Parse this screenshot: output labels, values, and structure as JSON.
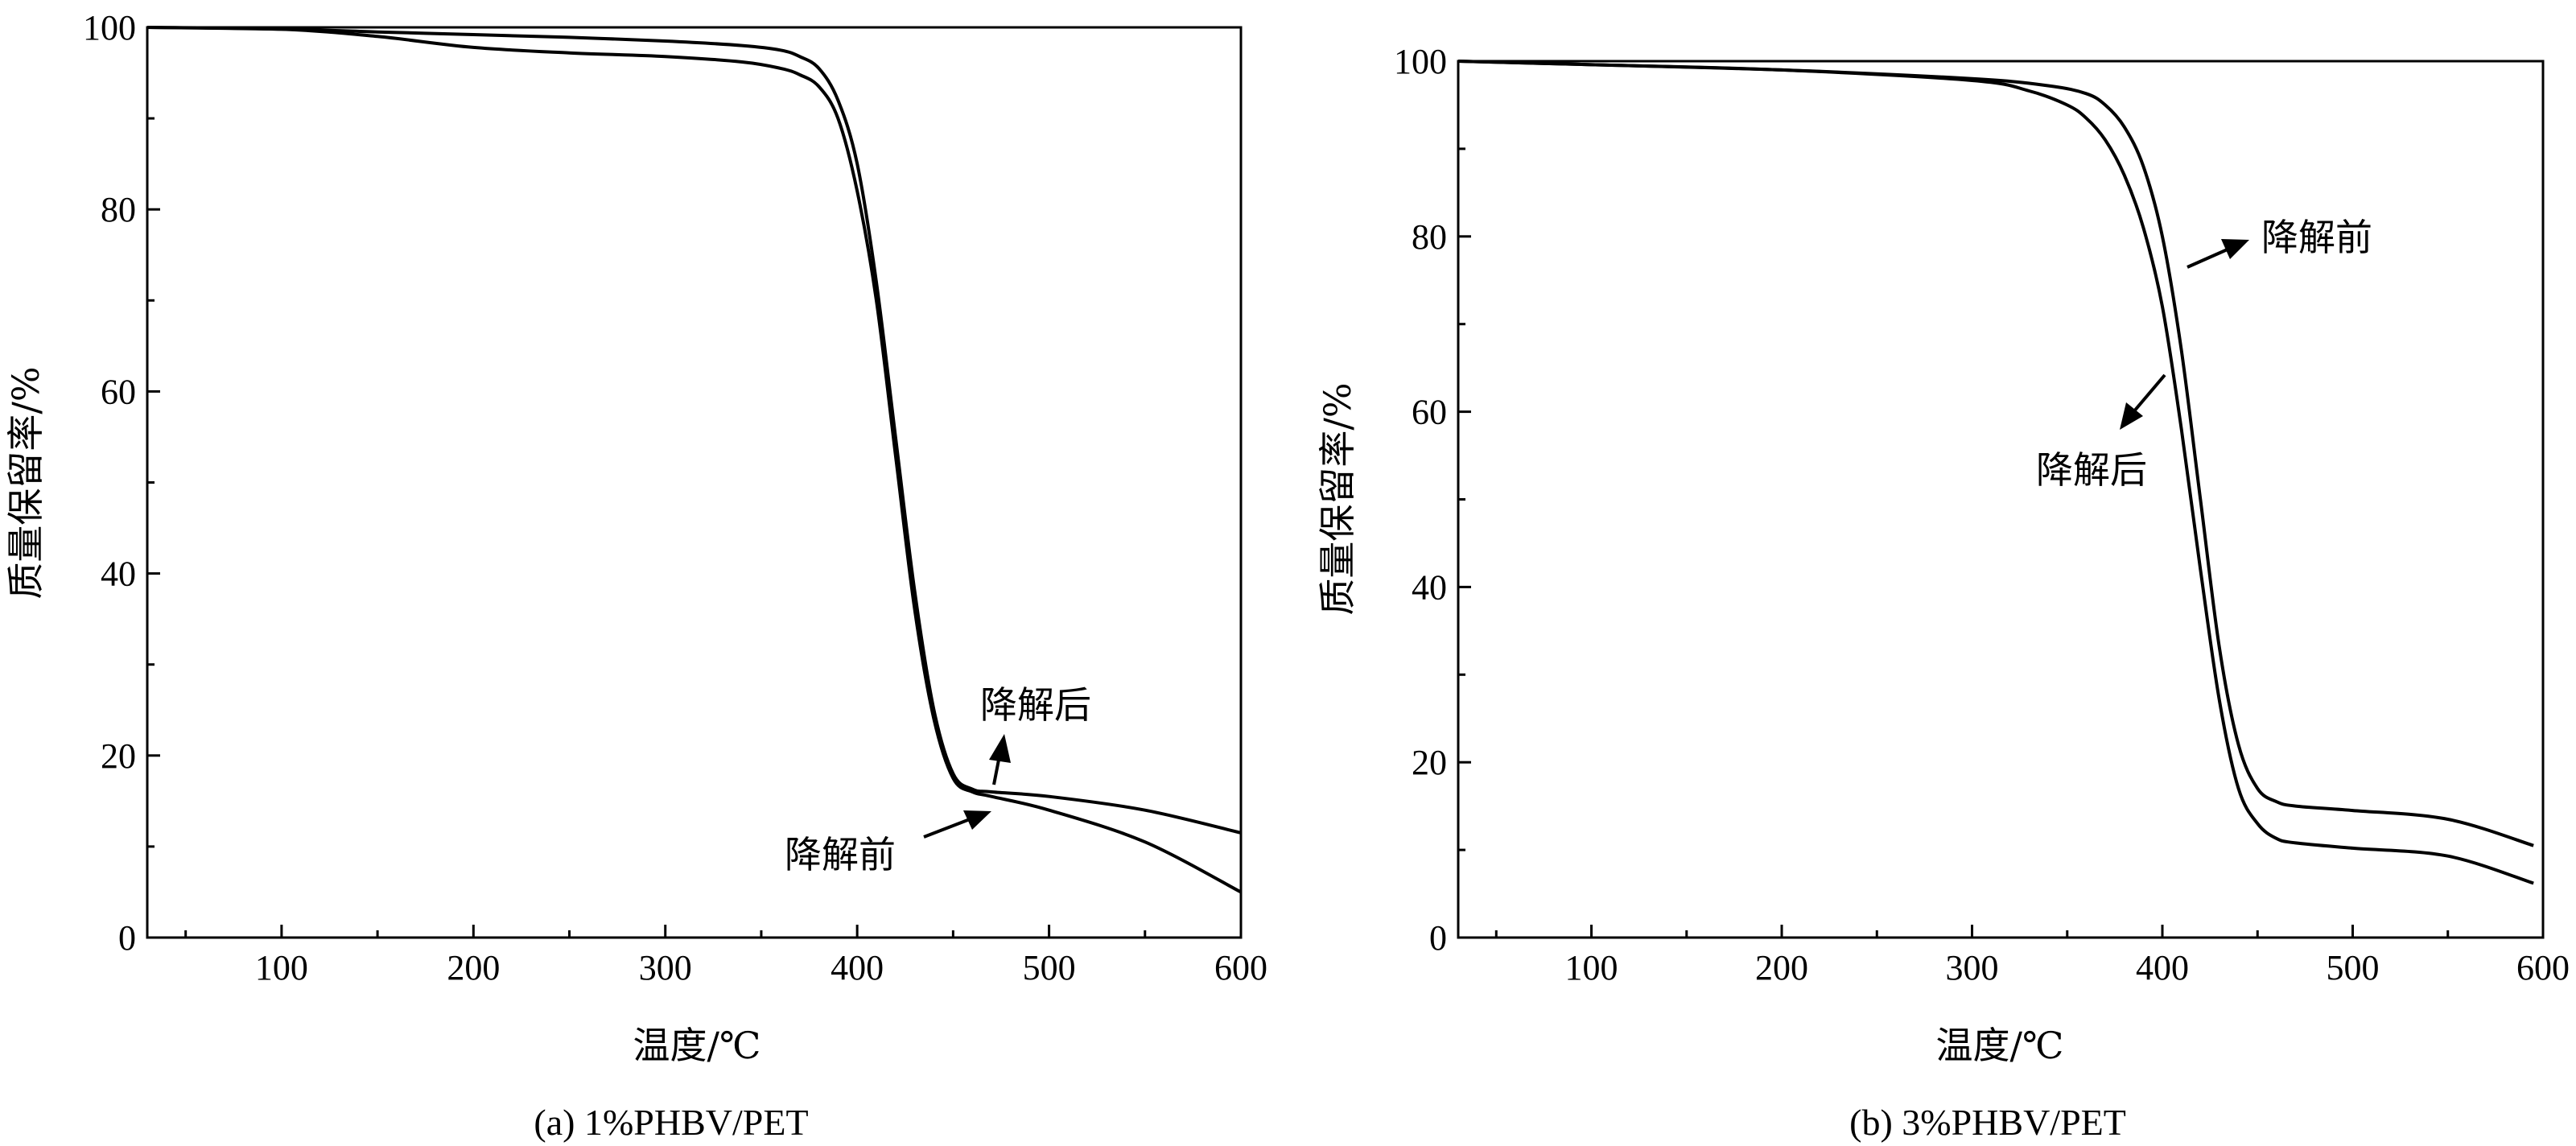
{
  "chart_data": [
    {
      "type": "line",
      "caption": "(a) 1%PHBV/PET",
      "xlabel": "温度/℃",
      "ylabel": "质量保留率/%",
      "xlim": [
        30,
        600
      ],
      "ylim": [
        0,
        100
      ],
      "xticks": [
        100,
        200,
        300,
        400,
        500,
        600
      ],
      "yticks": [
        0,
        20,
        40,
        60,
        80,
        100
      ],
      "series": [
        {
          "name": "降解前",
          "x": [
            30,
            100,
            150,
            200,
            250,
            300,
            340,
            360,
            370,
            380,
            390,
            400,
            410,
            420,
            430,
            440,
            450,
            460,
            470,
            500,
            550,
            600
          ],
          "y": [
            100,
            99.8,
            99.5,
            99.2,
            98.9,
            98.5,
            98.0,
            97.5,
            96.8,
            95.5,
            92,
            85,
            72,
            55,
            38,
            25,
            18,
            16.3,
            16.0,
            15.5,
            14,
            11.5
          ]
        },
        {
          "name": "降解后",
          "x": [
            30,
            100,
            150,
            200,
            250,
            300,
            340,
            360,
            370,
            380,
            390,
            400,
            410,
            420,
            430,
            440,
            450,
            460,
            470,
            500,
            550,
            600
          ],
          "y": [
            100,
            99.8,
            99.0,
            97.8,
            97.2,
            96.8,
            96.2,
            95.5,
            94.8,
            93.5,
            90,
            82,
            70,
            53,
            36,
            24,
            17.5,
            16.0,
            15.5,
            14,
            10.5,
            5
          ]
        }
      ],
      "annotations": [
        "降解后",
        "降解前"
      ]
    },
    {
      "type": "line",
      "caption": "(b) 3%PHBV/PET",
      "xlabel": "温度/℃",
      "ylabel": "质量保留率/%",
      "xlim": [
        30,
        600
      ],
      "ylim": [
        0,
        100
      ],
      "xticks": [
        100,
        200,
        300,
        400,
        500,
        600
      ],
      "yticks": [
        0,
        20,
        40,
        60,
        80,
        100
      ],
      "series": [
        {
          "name": "降解前",
          "x": [
            30,
            100,
            200,
            300,
            340,
            360,
            370,
            380,
            390,
            400,
            410,
            420,
            430,
            440,
            450,
            460,
            470,
            500,
            550,
            595
          ],
          "y": [
            100,
            99.6,
            99.0,
            98.0,
            97.2,
            96.3,
            95.0,
            92.5,
            88,
            80,
            67,
            50,
            33,
            22,
            17,
            15.5,
            15.0,
            14.5,
            13.5,
            10.5
          ]
        },
        {
          "name": "降解后",
          "x": [
            30,
            100,
            200,
            300,
            330,
            350,
            360,
            370,
            380,
            390,
            400,
            410,
            420,
            430,
            440,
            450,
            460,
            470,
            500,
            550,
            595
          ],
          "y": [
            100,
            99.6,
            99.0,
            97.8,
            96.6,
            95.0,
            93.5,
            91,
            87,
            81,
            72,
            58,
            42,
            27,
            17,
            13,
            11.3,
            10.8,
            10.2,
            9.3,
            6.2
          ]
        }
      ],
      "annotations": [
        "降解前",
        "降解后"
      ]
    }
  ]
}
